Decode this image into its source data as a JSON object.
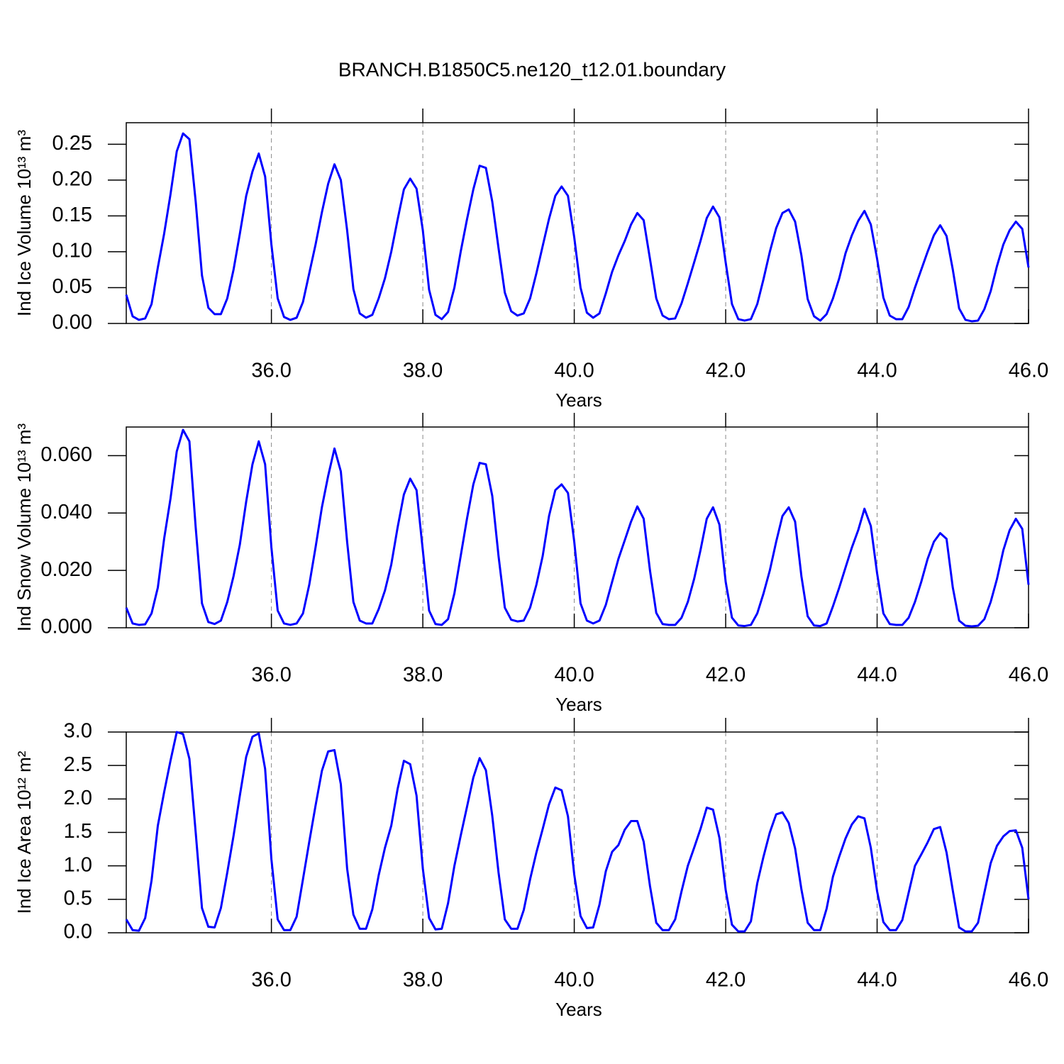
{
  "title": "BRANCH.B1850C5.ne120_t12.01.boundary",
  "chart_data": [
    {
      "type": "line",
      "ylabel": "Ind Ice Volume 10¹³ m³",
      "xlabel": "Years",
      "grid": true,
      "xlim": [
        34.083,
        46
      ],
      "ylim": [
        0,
        0.28
      ],
      "xticks": [
        {
          "value": 36,
          "label": "36.0"
        },
        {
          "value": 38,
          "label": "38.0"
        },
        {
          "value": 40,
          "label": "40.0"
        },
        {
          "value": 42,
          "label": "42.0"
        },
        {
          "value": 44,
          "label": "44.0"
        },
        {
          "value": 46,
          "label": "46.0"
        }
      ],
      "yticks": [
        {
          "value": 0,
          "label": "0.00"
        },
        0.05,
        {
          "value": 0.1,
          "label": "0.10"
        },
        0.15,
        {
          "value": 0.2,
          "label": "0.20"
        },
        0.25
      ],
      "color": "#0000ff",
      "x": [
        34.083,
        34.167,
        34.25,
        34.333,
        34.417,
        34.5,
        34.583,
        34.667,
        34.75,
        34.833,
        34.917,
        35,
        35.083,
        35.167,
        35.25,
        35.333,
        35.417,
        35.5,
        35.583,
        35.667,
        35.75,
        35.833,
        35.917,
        36,
        36.083,
        36.167,
        36.25,
        36.333,
        36.417,
        36.5,
        36.583,
        36.667,
        36.75,
        36.833,
        36.917,
        37,
        37.083,
        37.167,
        37.25,
        37.333,
        37.417,
        37.5,
        37.583,
        37.667,
        37.75,
        37.833,
        37.917,
        38,
        38.083,
        38.167,
        38.25,
        38.333,
        38.417,
        38.5,
        38.583,
        38.667,
        38.75,
        38.833,
        38.917,
        39,
        39.083,
        39.167,
        39.25,
        39.333,
        39.417,
        39.5,
        39.583,
        39.667,
        39.75,
        39.833,
        39.917,
        40,
        40.083,
        40.167,
        40.25,
        40.333,
        40.417,
        40.5,
        40.583,
        40.667,
        40.75,
        40.833,
        40.917,
        41,
        41.083,
        41.167,
        41.25,
        41.333,
        41.417,
        41.5,
        41.583,
        41.667,
        41.75,
        41.833,
        41.917,
        42,
        42.083,
        42.167,
        42.25,
        42.333,
        42.417,
        42.5,
        42.583,
        42.667,
        42.75,
        42.833,
        42.917,
        43,
        43.083,
        43.167,
        43.25,
        43.333,
        43.417,
        43.5,
        43.583,
        43.667,
        43.75,
        43.833,
        43.917,
        44,
        44.083,
        44.167,
        44.25,
        44.333,
        44.417,
        44.5,
        44.583,
        44.667,
        44.75,
        44.833,
        44.917,
        45,
        45.083,
        45.167,
        45.25,
        45.333,
        45.417,
        45.5,
        45.583,
        45.667,
        45.75,
        45.833,
        45.917,
        46
      ],
      "values": [
        0.04,
        0.01,
        0.005,
        0.007,
        0.027,
        0.078,
        0.125,
        0.18,
        0.24,
        0.265,
        0.257,
        0.17,
        0.067,
        0.022,
        0.013,
        0.013,
        0.035,
        0.075,
        0.125,
        0.178,
        0.212,
        0.237,
        0.205,
        0.11,
        0.035,
        0.009,
        0.005,
        0.008,
        0.03,
        0.07,
        0.11,
        0.155,
        0.195,
        0.222,
        0.2,
        0.13,
        0.048,
        0.014,
        0.008,
        0.012,
        0.035,
        0.063,
        0.1,
        0.145,
        0.187,
        0.202,
        0.188,
        0.13,
        0.047,
        0.012,
        0.006,
        0.016,
        0.05,
        0.1,
        0.145,
        0.187,
        0.22,
        0.217,
        0.17,
        0.105,
        0.043,
        0.017,
        0.011,
        0.014,
        0.035,
        0.07,
        0.108,
        0.146,
        0.178,
        0.191,
        0.178,
        0.12,
        0.05,
        0.015,
        0.008,
        0.014,
        0.042,
        0.072,
        0.095,
        0.115,
        0.138,
        0.154,
        0.144,
        0.09,
        0.035,
        0.011,
        0.006,
        0.007,
        0.028,
        0.056,
        0.085,
        0.115,
        0.147,
        0.163,
        0.148,
        0.085,
        0.027,
        0.006,
        0.004,
        0.006,
        0.027,
        0.062,
        0.1,
        0.133,
        0.154,
        0.159,
        0.142,
        0.095,
        0.034,
        0.01,
        0.004,
        0.013,
        0.035,
        0.063,
        0.098,
        0.123,
        0.143,
        0.157,
        0.138,
        0.09,
        0.036,
        0.011,
        0.006,
        0.006,
        0.023,
        0.05,
        0.075,
        0.1,
        0.123,
        0.137,
        0.122,
        0.075,
        0.021,
        0.005,
        0.003,
        0.004,
        0.02,
        0.045,
        0.08,
        0.11,
        0.13,
        0.142,
        0.132,
        0.078
      ]
    },
    {
      "type": "line",
      "ylabel": "Ind Snow Volume 10¹³ m³",
      "xlabel": "Years",
      "grid": true,
      "xlim": [
        34.083,
        46
      ],
      "ylim": [
        0,
        0.07
      ],
      "xticks": [
        {
          "value": 36,
          "label": "36.0"
        },
        {
          "value": 38,
          "label": "38.0"
        },
        {
          "value": 40,
          "label": "40.0"
        },
        {
          "value": 42,
          "label": "42.0"
        },
        {
          "value": 44,
          "label": "44.0"
        },
        {
          "value": 46,
          "label": "46.0"
        }
      ],
      "yticks": [
        {
          "value": 0,
          "label": "0.000"
        },
        {
          "value": 0.02,
          "label": "0.020"
        },
        {
          "value": 0.04,
          "label": "0.040"
        },
        {
          "value": 0.06,
          "label": "0.060"
        }
      ],
      "color": "#0000ff",
      "x": [
        34.083,
        34.167,
        34.25,
        34.333,
        34.417,
        34.5,
        34.583,
        34.667,
        34.75,
        34.833,
        34.917,
        35,
        35.083,
        35.167,
        35.25,
        35.333,
        35.417,
        35.5,
        35.583,
        35.667,
        35.75,
        35.833,
        35.917,
        36,
        36.083,
        36.167,
        36.25,
        36.333,
        36.417,
        36.5,
        36.583,
        36.667,
        36.75,
        36.833,
        36.917,
        37,
        37.083,
        37.167,
        37.25,
        37.333,
        37.417,
        37.5,
        37.583,
        37.667,
        37.75,
        37.833,
        37.917,
        38,
        38.083,
        38.167,
        38.25,
        38.333,
        38.417,
        38.5,
        38.583,
        38.667,
        38.75,
        38.833,
        38.917,
        39,
        39.083,
        39.167,
        39.25,
        39.333,
        39.417,
        39.5,
        39.583,
        39.667,
        39.75,
        39.833,
        39.917,
        40,
        40.083,
        40.167,
        40.25,
        40.333,
        40.417,
        40.5,
        40.583,
        40.667,
        40.75,
        40.833,
        40.917,
        41,
        41.083,
        41.167,
        41.25,
        41.333,
        41.417,
        41.5,
        41.583,
        41.667,
        41.75,
        41.833,
        41.917,
        42,
        42.083,
        42.167,
        42.25,
        42.333,
        42.417,
        42.5,
        42.583,
        42.667,
        42.75,
        42.833,
        42.917,
        43,
        43.083,
        43.167,
        43.25,
        43.333,
        43.417,
        43.5,
        43.583,
        43.667,
        43.75,
        43.833,
        43.917,
        44,
        44.083,
        44.167,
        44.25,
        44.333,
        44.417,
        44.5,
        44.583,
        44.667,
        44.75,
        44.833,
        44.917,
        45,
        45.083,
        45.167,
        45.25,
        45.333,
        45.417,
        45.5,
        45.583,
        45.667,
        45.75,
        45.833,
        45.917,
        46
      ],
      "values": [
        0.007,
        0.0015,
        0.001,
        0.0012,
        0.005,
        0.014,
        0.031,
        0.045,
        0.0615,
        0.069,
        0.065,
        0.035,
        0.0085,
        0.002,
        0.0013,
        0.0025,
        0.009,
        0.018,
        0.029,
        0.044,
        0.057,
        0.065,
        0.057,
        0.028,
        0.006,
        0.0015,
        0.001,
        0.0015,
        0.005,
        0.015,
        0.028,
        0.042,
        0.053,
        0.0625,
        0.0545,
        0.03,
        0.009,
        0.0025,
        0.0015,
        0.0015,
        0.0065,
        0.013,
        0.022,
        0.035,
        0.0465,
        0.052,
        0.048,
        0.027,
        0.006,
        0.0013,
        0.001,
        0.003,
        0.012,
        0.025,
        0.038,
        0.05,
        0.0575,
        0.057,
        0.046,
        0.025,
        0.007,
        0.0028,
        0.0022,
        0.0025,
        0.007,
        0.015,
        0.025,
        0.039,
        0.048,
        0.05,
        0.047,
        0.03,
        0.0085,
        0.0025,
        0.0015,
        0.0025,
        0.008,
        0.016,
        0.024,
        0.0305,
        0.037,
        0.0423,
        0.038,
        0.02,
        0.0052,
        0.0013,
        0.001,
        0.001,
        0.0035,
        0.009,
        0.017,
        0.027,
        0.038,
        0.042,
        0.036,
        0.016,
        0.0035,
        0.0008,
        0.0006,
        0.001,
        0.005,
        0.012,
        0.02,
        0.03,
        0.039,
        0.042,
        0.037,
        0.018,
        0.004,
        0.0008,
        0.0006,
        0.0015,
        0.0075,
        0.014,
        0.021,
        0.028,
        0.034,
        0.0415,
        0.0355,
        0.019,
        0.005,
        0.0013,
        0.001,
        0.001,
        0.0035,
        0.009,
        0.016,
        0.024,
        0.03,
        0.033,
        0.031,
        0.014,
        0.0025,
        0.0007,
        0.0005,
        0.0007,
        0.003,
        0.009,
        0.017,
        0.027,
        0.034,
        0.038,
        0.0345,
        0.015
      ]
    },
    {
      "type": "line",
      "ylabel": "Ind Ice Area 10¹² m²",
      "xlabel": "Years",
      "grid": true,
      "xlim": [
        34.083,
        46
      ],
      "ylim": [
        0,
        3
      ],
      "xticks": [
        {
          "value": 36,
          "label": "36.0"
        },
        {
          "value": 38,
          "label": "38.0"
        },
        {
          "value": 40,
          "label": "40.0"
        },
        {
          "value": 42,
          "label": "42.0"
        },
        {
          "value": 44,
          "label": "44.0"
        },
        {
          "value": 46,
          "label": "46.0"
        }
      ],
      "yticks": [
        {
          "value": 0,
          "label": "0.0"
        },
        0.5,
        {
          "value": 1,
          "label": "1.0"
        },
        1.5,
        {
          "value": 2,
          "label": "2.0"
        },
        2.5,
        {
          "value": 3,
          "label": "3.0"
        }
      ],
      "color": "#0000ff",
      "x": [
        34.083,
        34.167,
        34.25,
        34.333,
        34.417,
        34.5,
        34.583,
        34.667,
        34.75,
        34.833,
        34.917,
        35,
        35.083,
        35.167,
        35.25,
        35.333,
        35.417,
        35.5,
        35.583,
        35.667,
        35.75,
        35.833,
        35.917,
        36,
        36.083,
        36.167,
        36.25,
        36.333,
        36.417,
        36.5,
        36.583,
        36.667,
        36.75,
        36.833,
        36.917,
        37,
        37.083,
        37.167,
        37.25,
        37.333,
        37.417,
        37.5,
        37.583,
        37.667,
        37.75,
        37.833,
        37.917,
        38,
        38.083,
        38.167,
        38.25,
        38.333,
        38.417,
        38.5,
        38.583,
        38.667,
        38.75,
        38.833,
        38.917,
        39,
        39.083,
        39.167,
        39.25,
        39.333,
        39.417,
        39.5,
        39.583,
        39.667,
        39.75,
        39.833,
        39.917,
        40,
        40.083,
        40.167,
        40.25,
        40.333,
        40.417,
        40.5,
        40.583,
        40.667,
        40.75,
        40.833,
        40.917,
        41,
        41.083,
        41.167,
        41.25,
        41.333,
        41.417,
        41.5,
        41.583,
        41.667,
        41.75,
        41.833,
        41.917,
        42,
        42.083,
        42.167,
        42.25,
        42.333,
        42.417,
        42.5,
        42.583,
        42.667,
        42.75,
        42.833,
        42.917,
        43,
        43.083,
        43.167,
        43.25,
        43.333,
        43.417,
        43.5,
        43.583,
        43.667,
        43.75,
        43.833,
        43.917,
        44,
        44.083,
        44.167,
        44.25,
        44.333,
        44.417,
        44.5,
        44.583,
        44.667,
        44.75,
        44.833,
        44.917,
        45,
        45.083,
        45.167,
        45.25,
        45.333,
        45.417,
        45.5,
        45.583,
        45.667,
        45.75,
        45.833,
        45.917,
        46
      ],
      "values": [
        0.2,
        0.04,
        0.03,
        0.22,
        0.78,
        1.6,
        2.1,
        2.57,
        3.0,
        2.97,
        2.6,
        1.5,
        0.37,
        0.09,
        0.08,
        0.37,
        0.9,
        1.45,
        2.05,
        2.63,
        2.93,
        2.98,
        2.45,
        1.1,
        0.2,
        0.04,
        0.04,
        0.24,
        0.8,
        1.36,
        1.9,
        2.42,
        2.71,
        2.73,
        2.22,
        0.96,
        0.27,
        0.06,
        0.06,
        0.35,
        0.86,
        1.27,
        1.6,
        2.15,
        2.57,
        2.52,
        2.05,
        0.96,
        0.22,
        0.05,
        0.06,
        0.44,
        1.0,
        1.45,
        1.88,
        2.32,
        2.61,
        2.43,
        1.75,
        0.9,
        0.2,
        0.06,
        0.06,
        0.34,
        0.8,
        1.2,
        1.55,
        1.92,
        2.17,
        2.13,
        1.74,
        0.87,
        0.25,
        0.07,
        0.08,
        0.42,
        0.92,
        1.21,
        1.31,
        1.54,
        1.67,
        1.67,
        1.36,
        0.7,
        0.15,
        0.04,
        0.04,
        0.2,
        0.62,
        1.0,
        1.27,
        1.55,
        1.87,
        1.84,
        1.42,
        0.64,
        0.12,
        0.02,
        0.02,
        0.17,
        0.74,
        1.14,
        1.5,
        1.77,
        1.8,
        1.64,
        1.26,
        0.65,
        0.15,
        0.04,
        0.04,
        0.36,
        0.84,
        1.14,
        1.41,
        1.62,
        1.74,
        1.71,
        1.27,
        0.62,
        0.16,
        0.04,
        0.04,
        0.19,
        0.6,
        1.0,
        1.17,
        1.35,
        1.55,
        1.58,
        1.2,
        0.63,
        0.08,
        0.02,
        0.02,
        0.15,
        0.6,
        1.04,
        1.3,
        1.44,
        1.52,
        1.53,
        1.27,
        0.5
      ]
    }
  ]
}
